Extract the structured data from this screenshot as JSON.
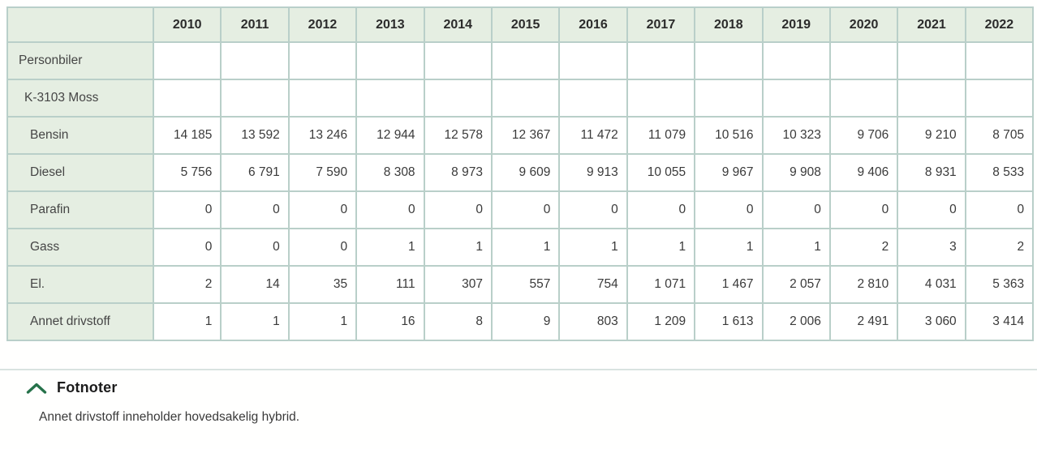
{
  "table": {
    "columns": [
      "2010",
      "2011",
      "2012",
      "2013",
      "2014",
      "2015",
      "2016",
      "2017",
      "2018",
      "2019",
      "2020",
      "2021",
      "2022"
    ],
    "rows": [
      {
        "label": "Personbiler",
        "indent": 0,
        "values": [
          "",
          "",
          "",
          "",
          "",
          "",
          "",
          "",
          "",
          "",
          "",
          "",
          ""
        ]
      },
      {
        "label": "K-3103 Moss",
        "indent": 1,
        "values": [
          "",
          "",
          "",
          "",
          "",
          "",
          "",
          "",
          "",
          "",
          "",
          "",
          ""
        ]
      },
      {
        "label": "Bensin",
        "indent": 2,
        "values": [
          "14 185",
          "13 592",
          "13 246",
          "12 944",
          "12 578",
          "12 367",
          "11 472",
          "11 079",
          "10 516",
          "10 323",
          "9 706",
          "9 210",
          "8 705"
        ]
      },
      {
        "label": "Diesel",
        "indent": 2,
        "values": [
          "5 756",
          "6 791",
          "7 590",
          "8 308",
          "8 973",
          "9 609",
          "9 913",
          "10 055",
          "9 967",
          "9 908",
          "9 406",
          "8 931",
          "8 533"
        ]
      },
      {
        "label": "Parafin",
        "indent": 2,
        "values": [
          "0",
          "0",
          "0",
          "0",
          "0",
          "0",
          "0",
          "0",
          "0",
          "0",
          "0",
          "0",
          "0"
        ]
      },
      {
        "label": "Gass",
        "indent": 2,
        "values": [
          "0",
          "0",
          "0",
          "1",
          "1",
          "1",
          "1",
          "1",
          "1",
          "1",
          "2",
          "3",
          "2"
        ]
      },
      {
        "label": "El.",
        "indent": 2,
        "values": [
          "2",
          "14",
          "35",
          "111",
          "307",
          "557",
          "754",
          "1 071",
          "1 467",
          "2 057",
          "2 810",
          "4 031",
          "5 363"
        ]
      },
      {
        "label": "Annet drivstoff",
        "indent": 2,
        "values": [
          "1",
          "1",
          "1",
          "16",
          "8",
          "9",
          "803",
          "1 209",
          "1 613",
          "2 006",
          "2 491",
          "3 060",
          "3 414"
        ]
      }
    ]
  },
  "footnotes": {
    "heading": "Fotnoter",
    "items": [
      "Annet drivstoff inneholder hovedsakelig hybrid."
    ],
    "chevron_icon": "chevron-up-icon"
  },
  "colors": {
    "header_bg": "#e5eee2",
    "table_border": "#b9cfc9",
    "chevron_green": "#26724a",
    "text_dark": "#3a3a3a",
    "divider": "#d9e3e0"
  }
}
